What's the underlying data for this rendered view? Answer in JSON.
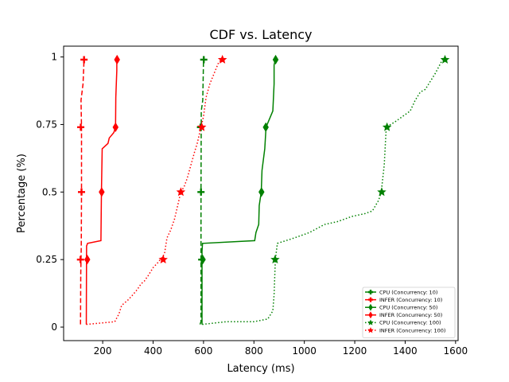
{
  "chart_data": {
    "type": "line",
    "title": "CDF vs. Latency",
    "xlabel": "Latency (ms)",
    "ylabel": "Percentage (%)",
    "xlim": [
      45,
      1610
    ],
    "ylim": [
      -0.05,
      1.04
    ],
    "xticks": [
      200,
      400,
      600,
      800,
      1000,
      1200,
      1400,
      1600
    ],
    "xtick_labels": [
      "200",
      "400",
      "600",
      "800",
      "1000",
      "1200",
      "1400",
      "1600"
    ],
    "yticks": [
      0,
      0.25,
      0.5,
      0.75,
      1
    ],
    "ytick_labels": [
      "0",
      "0.25",
      "0.5",
      "0.75",
      "1"
    ],
    "legend_position": "bottom-right",
    "series": [
      {
        "name": "CPU (Concurrency: 10)",
        "color": "#008000",
        "dash": "dashed",
        "marker": "plus",
        "points": [
          [
            586,
            0.01
          ],
          [
            590,
            0.02
          ],
          [
            590,
            0.5
          ],
          [
            591,
            0.8
          ],
          [
            597,
            0.84
          ],
          [
            600,
            0.99
          ]
        ],
        "markers": [
          [
            593,
            0.25
          ],
          [
            590,
            0.5
          ],
          [
            588,
            0.74
          ],
          [
            601,
            0.99
          ]
        ]
      },
      {
        "name": "INFER (Concurrency: 10)",
        "color": "#ff0000",
        "dash": "dashed",
        "marker": "plus",
        "points": [
          [
            112,
            0.01
          ],
          [
            113,
            0.2
          ],
          [
            115,
            0.3
          ],
          [
            116,
            0.5
          ],
          [
            116,
            0.74
          ],
          [
            114,
            0.84
          ],
          [
            122,
            0.9
          ],
          [
            126,
            0.99
          ]
        ],
        "markers": [
          [
            112,
            0.25
          ],
          [
            116,
            0.5
          ],
          [
            113,
            0.74
          ],
          [
            126,
            0.99
          ]
        ]
      },
      {
        "name": "CPU (Concurrency: 50)",
        "color": "#008000",
        "dash": "solid",
        "marker": "diamond",
        "points": [
          [
            594,
            0.01
          ],
          [
            594,
            0.28
          ],
          [
            596,
            0.31
          ],
          [
            803,
            0.32
          ],
          [
            808,
            0.35
          ],
          [
            819,
            0.38
          ],
          [
            821,
            0.45
          ],
          [
            829,
            0.5
          ],
          [
            832,
            0.58
          ],
          [
            843,
            0.66
          ],
          [
            848,
            0.74
          ],
          [
            875,
            0.8
          ],
          [
            880,
            0.9
          ],
          [
            880,
            0.97
          ],
          [
            885,
            0.99
          ]
        ],
        "markers": [
          [
            597,
            0.25
          ],
          [
            830,
            0.5
          ],
          [
            847,
            0.74
          ],
          [
            886,
            0.99
          ]
        ]
      },
      {
        "name": "INFER (Concurrency: 50)",
        "color": "#ff0000",
        "dash": "solid",
        "marker": "diamond",
        "points": [
          [
            135,
            0.01
          ],
          [
            136,
            0.3
          ],
          [
            140,
            0.31
          ],
          [
            193,
            0.32
          ],
          [
            195,
            0.5
          ],
          [
            198,
            0.66
          ],
          [
            221,
            0.68
          ],
          [
            226,
            0.7
          ],
          [
            244,
            0.72
          ],
          [
            251,
            0.74
          ],
          [
            252,
            0.85
          ],
          [
            256,
            0.95
          ],
          [
            256,
            0.99
          ]
        ],
        "markers": [
          [
            139,
            0.25
          ],
          [
            196,
            0.5
          ],
          [
            251,
            0.74
          ],
          [
            257,
            0.99
          ]
        ]
      },
      {
        "name": "CPU (Concurrency: 100)",
        "color": "#008000",
        "dash": "dotted",
        "marker": "star",
        "points": [
          [
            595,
            0.01
          ],
          [
            690,
            0.02
          ],
          [
            800,
            0.02
          ],
          [
            855,
            0.03
          ],
          [
            875,
            0.06
          ],
          [
            880,
            0.12
          ],
          [
            885,
            0.25
          ],
          [
            893,
            0.31
          ],
          [
            960,
            0.33
          ],
          [
            1020,
            0.35
          ],
          [
            1080,
            0.38
          ],
          [
            1130,
            0.39
          ],
          [
            1190,
            0.41
          ],
          [
            1240,
            0.42
          ],
          [
            1270,
            0.43
          ],
          [
            1295,
            0.47
          ],
          [
            1305,
            0.5
          ],
          [
            1317,
            0.6
          ],
          [
            1325,
            0.74
          ],
          [
            1360,
            0.76
          ],
          [
            1390,
            0.78
          ],
          [
            1420,
            0.8
          ],
          [
            1440,
            0.84
          ],
          [
            1460,
            0.87
          ],
          [
            1480,
            0.88
          ],
          [
            1500,
            0.91
          ],
          [
            1520,
            0.94
          ],
          [
            1548,
            0.99
          ]
        ],
        "markers": [
          [
            884,
            0.25
          ],
          [
            1307,
            0.5
          ],
          [
            1328,
            0.74
          ],
          [
            1558,
            0.99
          ]
        ]
      },
      {
        "name": "INFER (Concurrency: 100)",
        "color": "#ff0000",
        "dash": "dotted",
        "marker": "star",
        "points": [
          [
            135,
            0.01
          ],
          [
            248,
            0.02
          ],
          [
            265,
            0.05
          ],
          [
            275,
            0.08
          ],
          [
            300,
            0.1
          ],
          [
            320,
            0.12
          ],
          [
            338,
            0.14
          ],
          [
            352,
            0.16
          ],
          [
            365,
            0.17
          ],
          [
            380,
            0.19
          ],
          [
            400,
            0.22
          ],
          [
            420,
            0.24
          ],
          [
            445,
            0.27
          ],
          [
            455,
            0.33
          ],
          [
            470,
            0.36
          ],
          [
            485,
            0.4
          ],
          [
            495,
            0.44
          ],
          [
            510,
            0.5
          ],
          [
            523,
            0.52
          ],
          [
            535,
            0.55
          ],
          [
            550,
            0.6
          ],
          [
            565,
            0.65
          ],
          [
            575,
            0.68
          ],
          [
            590,
            0.74
          ],
          [
            600,
            0.78
          ],
          [
            610,
            0.85
          ],
          [
            625,
            0.9
          ],
          [
            660,
            0.98
          ],
          [
            673,
            0.99
          ]
        ],
        "markers": [
          [
            440,
            0.25
          ],
          [
            510,
            0.5
          ],
          [
            593,
            0.74
          ],
          [
            675,
            0.99
          ]
        ]
      }
    ]
  }
}
